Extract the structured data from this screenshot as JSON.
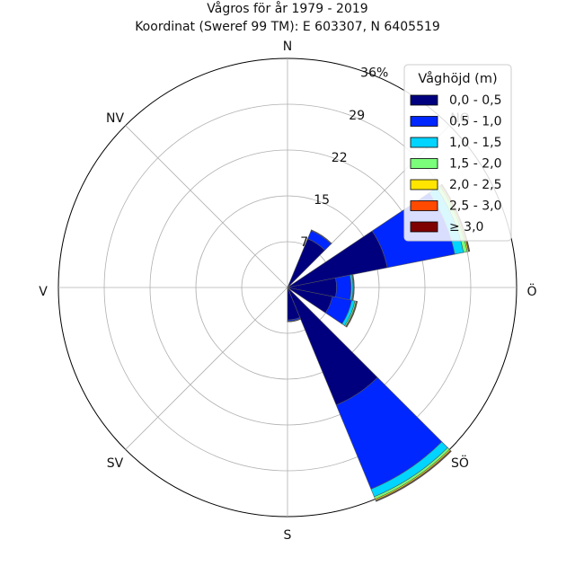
{
  "chart_data": {
    "type": "windrose",
    "title": "Vågros för år 1979 - 2019",
    "subtitle": "Koordinat (Sweref 99 TM): E 603307, N 6405519",
    "directions": [
      "N",
      "NO",
      "Ö",
      "SÖ",
      "S",
      "SV",
      "V",
      "NV"
    ],
    "radial_ticks": [
      "7",
      "15",
      "22",
      "29",
      "36%"
    ],
    "radial_tick_values": [
      7.2,
      14.4,
      21.6,
      28.8,
      36
    ],
    "r_max": 36,
    "grid": true,
    "legend": {
      "title": "Våghöjd (m)",
      "placement": "top-right",
      "labels": [
        "0,0 - 0,5",
        "0,5 - 1,0",
        "1,0 - 1,5",
        "1,5 - 2,0",
        "2,0 - 2,5",
        "2,5 - 3,0",
        "≥ 3,0"
      ],
      "colors": [
        "#00007f",
        "#0027ff",
        "#00d4ff",
        "#7bff7b",
        "#ffe500",
        "#ff4a00",
        "#7f0000"
      ]
    },
    "sectors": [
      {
        "bearing": 33.75,
        "cumulative": [
          8.3,
          9.7,
          9.75,
          9.77,
          9.78,
          9.79,
          9.8
        ]
      },
      {
        "bearing": 67.5,
        "cumulative": [
          16.0,
          26.8,
          28.2,
          28.8,
          29.0,
          29.1,
          29.2
        ]
      },
      {
        "bearing": 90,
        "cumulative": [
          7.7,
          10.0,
          10.3,
          10.4,
          10.45,
          10.5,
          10.5
        ]
      },
      {
        "bearing": 112.5,
        "cumulative": [
          7.2,
          10.3,
          10.8,
          11.0,
          11.1,
          11.1,
          11.2
        ]
      },
      {
        "bearing": 146.25,
        "cumulative": [
          20.0,
          34.3,
          35.6,
          36.0,
          36.2,
          36.3,
          36.4
        ]
      },
      {
        "bearing": 168.75,
        "cumulative": [
          5.1,
          5.3,
          5.35,
          5.37,
          5.38,
          5.39,
          5.4
        ]
      }
    ]
  }
}
